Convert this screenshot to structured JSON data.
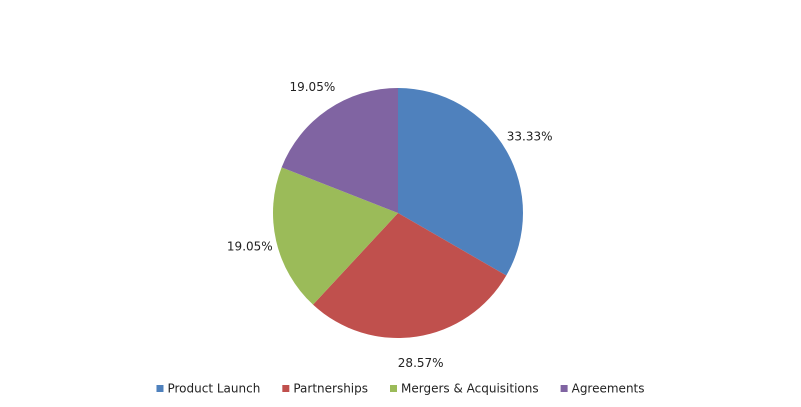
{
  "chart_data": {
    "type": "pie",
    "categories": [
      "Product Launch",
      "Partnerships",
      "Mergers & Acquisitions",
      "Agreements"
    ],
    "values": [
      33.33,
      28.57,
      19.05,
      19.05
    ],
    "value_labels": [
      "33.33%",
      "28.57%",
      "19.05%",
      "19.05%"
    ],
    "colors": [
      "#4f81bd",
      "#c0504d",
      "#9bbb59",
      "#8064a2"
    ],
    "legend": "bottom"
  }
}
